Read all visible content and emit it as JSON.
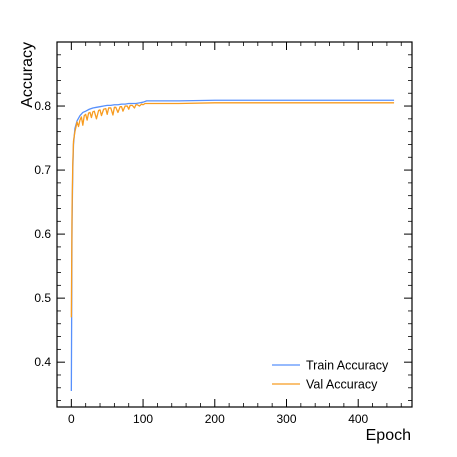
{
  "chart_data": {
    "type": "line",
    "title": "",
    "xlabel": "Epoch",
    "ylabel": "Accuracy",
    "xlim": [
      -20,
      475
    ],
    "ylim": [
      0.33,
      0.9
    ],
    "xticks": [
      0,
      100,
      200,
      300,
      400
    ],
    "yticks": [
      0.4,
      0.5,
      0.6,
      0.7,
      0.8
    ],
    "grid": false,
    "legend_position": "bottom-right",
    "series": [
      {
        "name": "Train Accuracy",
        "color": "#5790fc",
        "x": [
          0,
          1,
          2,
          3,
          5,
          8,
          12,
          16,
          20,
          25,
          30,
          35,
          40,
          45,
          50,
          55,
          60,
          65,
          70,
          75,
          80,
          85,
          90,
          95,
          100,
          105,
          110,
          150,
          200,
          250,
          300,
          350,
          400,
          450
        ],
        "y": [
          0.355,
          0.62,
          0.7,
          0.74,
          0.765,
          0.777,
          0.785,
          0.79,
          0.792,
          0.795,
          0.797,
          0.798,
          0.799,
          0.8,
          0.801,
          0.801,
          0.802,
          0.802,
          0.803,
          0.803,
          0.804,
          0.804,
          0.804,
          0.805,
          0.806,
          0.808,
          0.808,
          0.808,
          0.809,
          0.809,
          0.809,
          0.809,
          0.809,
          0.809
        ]
      },
      {
        "name": "Val Accuracy",
        "color": "#f89c20",
        "x": [
          0,
          1,
          2,
          3,
          5,
          8,
          10,
          12,
          14,
          16,
          18,
          20,
          22,
          24,
          26,
          28,
          30,
          32,
          35,
          38,
          40,
          42,
          45,
          48,
          50,
          52,
          55,
          58,
          60,
          62,
          65,
          68,
          70,
          72,
          75,
          78,
          80,
          82,
          85,
          88,
          90,
          92,
          95,
          98,
          100,
          103,
          106,
          150,
          200,
          250,
          300,
          350,
          400,
          450
        ],
        "y": [
          0.47,
          0.64,
          0.71,
          0.745,
          0.76,
          0.775,
          0.768,
          0.778,
          0.783,
          0.77,
          0.785,
          0.787,
          0.778,
          0.789,
          0.79,
          0.782,
          0.791,
          0.792,
          0.78,
          0.793,
          0.794,
          0.785,
          0.795,
          0.796,
          0.787,
          0.797,
          0.797,
          0.786,
          0.798,
          0.798,
          0.79,
          0.799,
          0.799,
          0.792,
          0.8,
          0.8,
          0.795,
          0.801,
          0.801,
          0.797,
          0.802,
          0.802,
          0.8,
          0.803,
          0.802,
          0.804,
          0.804,
          0.804,
          0.805,
          0.805,
          0.805,
          0.805,
          0.805,
          0.805
        ]
      }
    ]
  }
}
